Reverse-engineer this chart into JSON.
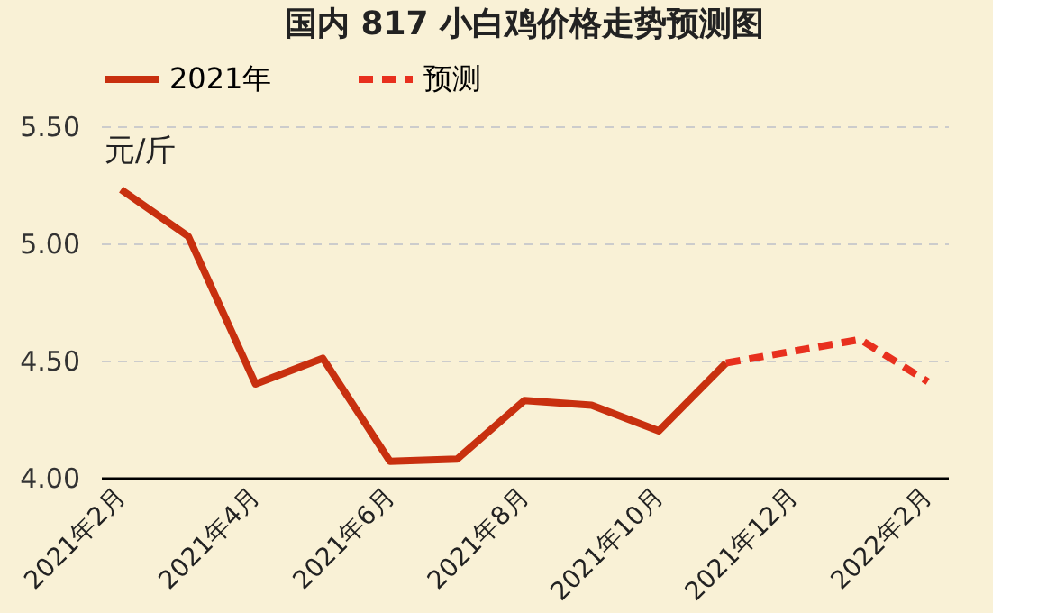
{
  "chart_data": {
    "type": "line",
    "title": "国内 817 小白鸡价格走势预测图",
    "ylabel": "元/斤",
    "categories": [
      "2021年2月",
      null,
      "2021年4月",
      null,
      "2021年6月",
      null,
      "2021年8月",
      null,
      "2021年10月",
      null,
      "2021年12月",
      null,
      "2022年2月"
    ],
    "series": [
      {
        "name": "2021年",
        "color": "#c8300f",
        "line_style": "solid",
        "values": [
          5.23,
          5.03,
          4.4,
          4.51,
          4.07,
          4.08,
          4.33,
          4.31,
          4.2,
          4.49,
          null,
          null,
          null
        ]
      },
      {
        "name": "预测",
        "color": "#e8301e",
        "line_style": "dashed",
        "values": [
          null,
          null,
          null,
          null,
          null,
          null,
          null,
          null,
          null,
          4.49,
          4.54,
          4.59,
          4.41
        ]
      }
    ],
    "ylim": [
      4.0,
      5.5
    ],
    "yticks": [
      {
        "value": 4.0,
        "label": "4.00"
      },
      {
        "value": 4.5,
        "label": "4.50"
      },
      {
        "value": 5.0,
        "label": "5.00"
      },
      {
        "value": 5.5,
        "label": "5.50"
      }
    ],
    "grid": "y",
    "legend": "top",
    "marker": "none"
  }
}
